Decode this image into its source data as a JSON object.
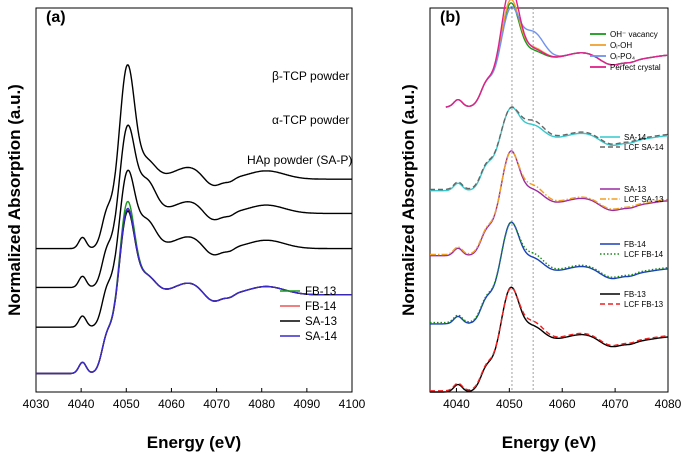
{
  "chart_data": [
    {
      "type": "line",
      "panel_label": "(a)",
      "xlabel": "Energy (eV)",
      "ylabel": "Normalized Absorption (a.u.)",
      "xlim": [
        4030,
        4100
      ],
      "ylim": [
        -0.2,
        3.95
      ],
      "x_ticks": [
        "4030",
        "4040",
        "4050",
        "4060",
        "4070",
        "4080",
        "4090",
        "4100"
      ],
      "x_tick_values": [
        4030,
        4040,
        4050,
        4060,
        4070,
        4080,
        4090,
        4100
      ],
      "reference_spectra": [
        {
          "name": "β-TCP powder",
          "color": "#000000",
          "offset": 1.35
        },
        {
          "name": "α-TCP powder",
          "color": "#000000",
          "offset": 0.93
        },
        {
          "name": "HAp powder (SA-P)",
          "color": "#000000",
          "offset": 0.5
        }
      ],
      "series": [
        {
          "name": "FB-13",
          "color": "#1a9a1a",
          "peak_scale": 1.08
        },
        {
          "name": "FB-14",
          "color": "#ee5555",
          "peak_scale": 0.98
        },
        {
          "name": "SA-13",
          "color": "#000000",
          "peak_scale": 0.97
        },
        {
          "name": "SA-14",
          "color": "#3a2acc",
          "peak_scale": 1.0
        }
      ],
      "legend_position": "lower-right"
    },
    {
      "type": "line",
      "panel_label": "(b)",
      "xlabel": "Energy (eV)",
      "ylabel": "Normalized Absorption (a.u.)",
      "xlim": [
        4035,
        4080
      ],
      "ylim": [
        0,
        6.2
      ],
      "x_ticks": [
        "4040",
        "4050",
        "4060",
        "4070",
        "4080"
      ],
      "x_tick_values": [
        4040,
        4050,
        4060,
        4070,
        4080
      ],
      "reference_lines_x": [
        4050.5,
        4054.5
      ],
      "model_series": [
        {
          "name": "OH⁻ vacancy",
          "color": "#1a9a1a"
        },
        {
          "name": "Oᵢ-OH",
          "color": "#f0a030"
        },
        {
          "name": "Oᵢ-PO₄",
          "color": "#6f93ee"
        },
        {
          "name": "Perfect crystal",
          "color": "#e0208a"
        }
      ],
      "fit_pairs": [
        {
          "sample": "SA-14",
          "sample_color": "#35c8cc",
          "fit": "LCF SA-14",
          "fit_color": "#666666",
          "fit_style": "dash",
          "offset": 3.25
        },
        {
          "sample": "SA-13",
          "sample_color": "#9a2aa0",
          "fit": "LCF SA-13",
          "fit_color": "#f0a020",
          "fit_style": "dashdot",
          "offset": 2.2
        },
        {
          "sample": "FB-14",
          "sample_color": "#1840b8",
          "fit": "LCF FB-14",
          "fit_color": "#1a8a1a",
          "fit_style": "dot",
          "offset": 1.1
        },
        {
          "sample": "FB-13",
          "sample_color": "#000000",
          "fit": "LCF FB-13",
          "fit_color": "#ee2020",
          "fit_style": "dash",
          "offset": 0.0
        }
      ],
      "model_offset": 4.6,
      "legend_position": "top-right"
    }
  ]
}
